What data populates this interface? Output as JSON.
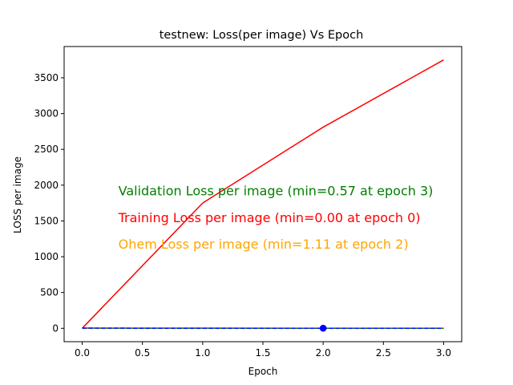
{
  "chart_data": {
    "type": "line",
    "title": "testnew:  Loss(per image) Vs Epoch",
    "xlabel": "Epoch",
    "ylabel": "LOSS per image",
    "xlim": [
      -0.15,
      3.15
    ],
    "ylim": [
      -187,
      3937
    ],
    "xticks": [
      0.0,
      0.5,
      1.0,
      1.5,
      2.0,
      2.5,
      3.0
    ],
    "xtick_labels": [
      "0.0",
      "0.5",
      "1.0",
      "1.5",
      "2.0",
      "2.5",
      "3.0"
    ],
    "yticks": [
      0,
      500,
      1000,
      1500,
      2000,
      2500,
      3000,
      3500
    ],
    "ytick_labels": [
      "0",
      "500",
      "1000",
      "1500",
      "2000",
      "2500",
      "3000",
      "3500"
    ],
    "grid": false,
    "series": [
      {
        "key": "validation",
        "color": "#008000",
        "dash": "solid",
        "x": [
          0,
          1,
          2,
          3
        ],
        "y": [
          3.0,
          1.5,
          0.9,
          0.57
        ]
      },
      {
        "key": "training",
        "color": "#ff0000",
        "dash": "solid",
        "x": [
          0,
          1,
          2,
          3
        ],
        "y": [
          0.0,
          1750,
          2810,
          3750
        ]
      },
      {
        "key": "ohem",
        "color": "#ffa500",
        "dash": "dashed",
        "x": [
          0,
          1,
          2,
          3
        ],
        "y": [
          2.0,
          1.5,
          1.11,
          1.3
        ]
      },
      {
        "key": "other",
        "color": "#0000ff",
        "dash": "dashed",
        "x": [
          0,
          1,
          2,
          3
        ],
        "y": [
          1.5,
          1.3,
          1.11,
          1.2
        ]
      }
    ],
    "markers": [
      {
        "x": 2,
        "y": 1.11,
        "color": "#0000ff"
      }
    ],
    "annotations": [
      {
        "text": "Validation Loss per image (min=0.57 at epoch 3)",
        "color": "#008000",
        "x": 0.3,
        "y": 1925
      },
      {
        "text": "Training Loss per image (min=0.00 at epoch 0)",
        "color": "#ff0000",
        "x": 0.3,
        "y": 1550
      },
      {
        "text": "Ohem Loss per image (min=1.11 at epoch 2)",
        "color": "#ffa500",
        "x": 0.3,
        "y": 1180
      }
    ]
  }
}
